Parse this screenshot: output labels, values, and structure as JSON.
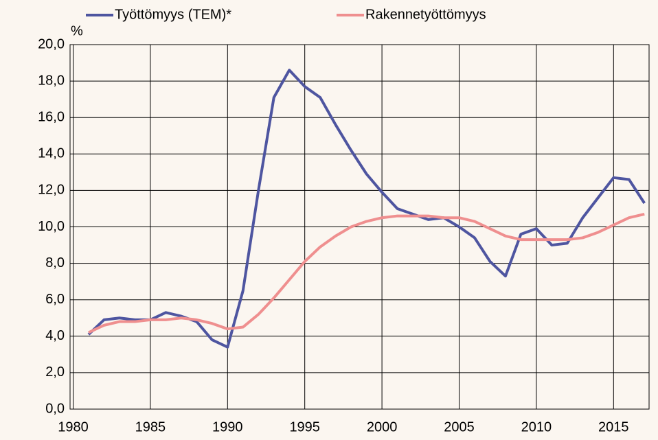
{
  "chart_data": {
    "type": "line",
    "y_unit_label": "%",
    "x": [
      1981,
      1982,
      1983,
      1984,
      1985,
      1986,
      1987,
      1988,
      1989,
      1990,
      1991,
      1992,
      1993,
      1994,
      1995,
      1996,
      1997,
      1998,
      1999,
      2000,
      2001,
      2002,
      2003,
      2004,
      2005,
      2006,
      2007,
      2008,
      2009,
      2010,
      2011,
      2012,
      2013,
      2014,
      2015,
      2016,
      2017
    ],
    "series": [
      {
        "name": "Työttömyys (TEM)*",
        "color": "#4e55a0",
        "values": [
          4.1,
          4.9,
          5.0,
          4.9,
          4.9,
          5.3,
          5.1,
          4.8,
          3.8,
          3.4,
          6.5,
          12.0,
          17.1,
          18.6,
          17.7,
          17.1,
          15.6,
          14.2,
          12.9,
          11.9,
          11.0,
          10.7,
          10.4,
          10.5,
          10.0,
          9.4,
          8.1,
          7.3,
          9.6,
          9.9,
          9.0,
          9.1,
          10.5,
          11.6,
          12.7,
          12.6,
          11.3
        ]
      },
      {
        "name": "Rakennetyöttömyys",
        "color": "#ef8f8f",
        "values": [
          4.2,
          4.6,
          4.8,
          4.8,
          4.9,
          4.9,
          5.0,
          4.9,
          4.7,
          4.4,
          4.5,
          5.2,
          6.1,
          7.1,
          8.1,
          8.9,
          9.5,
          10.0,
          10.3,
          10.5,
          10.6,
          10.6,
          10.6,
          10.5,
          10.5,
          10.3,
          9.9,
          9.5,
          9.3,
          9.3,
          9.3,
          9.3,
          9.4,
          9.7,
          10.1,
          10.5,
          10.7
        ]
      }
    ],
    "xlim": [
      1979.8,
      2017.3
    ],
    "xticks": [
      1980,
      1985,
      1990,
      1995,
      2000,
      2005,
      2010,
      2015
    ],
    "ylim": [
      0,
      20
    ],
    "yticks": [
      {
        "value": 0,
        "label": "0,0"
      },
      {
        "value": 2,
        "label": "2,0"
      },
      {
        "value": 4,
        "label": "4,0"
      },
      {
        "value": 6,
        "label": "6,0"
      },
      {
        "value": 8,
        "label": "8,0"
      },
      {
        "value": 10,
        "label": "10,0"
      },
      {
        "value": 12,
        "label": "12,0"
      },
      {
        "value": 14,
        "label": "14,0"
      },
      {
        "value": 16,
        "label": "16,0"
      },
      {
        "value": 18,
        "label": "18,0"
      },
      {
        "value": 20,
        "label": "20,0"
      }
    ],
    "grid": true,
    "legend": "top"
  }
}
